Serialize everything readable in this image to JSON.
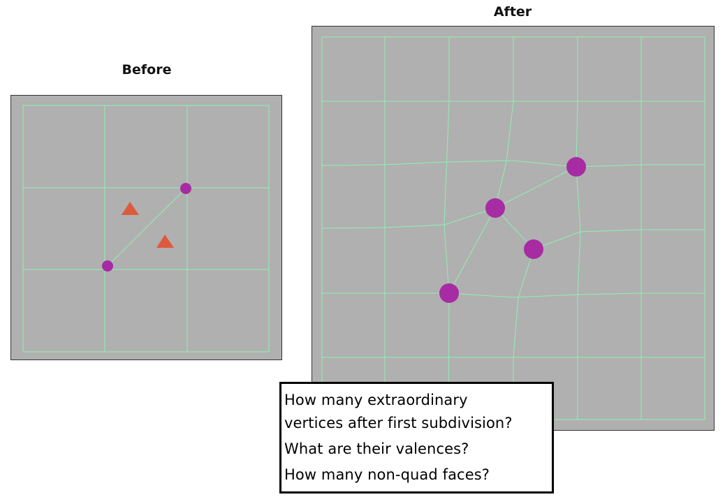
{
  "panels": {
    "before": {
      "title": "Before"
    },
    "after": {
      "title": "After"
    }
  },
  "colors": {
    "background": "#b0b0b0",
    "border": "#333333",
    "mesh_line": "#8ff0b4",
    "vertex": "#a72ba3",
    "triangle": "#de5a3e"
  },
  "questions": [
    "How many extraordinary\nvertices after first subdivision?",
    "What are their valences?",
    "How many non-quad faces?"
  ]
}
